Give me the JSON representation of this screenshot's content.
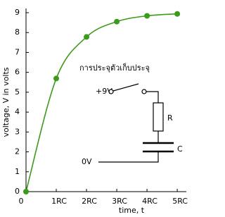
{
  "chart_data": {
    "type": "line",
    "x_label": "time, t",
    "y_label": "voltage, V in volts",
    "x": [
      0,
      1,
      2,
      3,
      4,
      5
    ],
    "series": [
      {
        "color": "#3c9a1c",
        "values": [
          0,
          5.69,
          7.78,
          8.55,
          8.84,
          8.94
        ]
      }
    ],
    "xlim": [
      0,
      5.3
    ],
    "ylim": [
      0,
      9
    ],
    "xticks": [
      0,
      {
        "value": 1,
        "label": "1RC"
      },
      {
        "value": 2,
        "label": "2RC"
      },
      {
        "value": 3,
        "label": "3RC"
      },
      {
        "value": 4,
        "label": "4RC"
      },
      {
        "value": 5,
        "label": "5RC"
      }
    ],
    "yticks": [
      0,
      1,
      2,
      3,
      4,
      5,
      6,
      7,
      8,
      9
    ],
    "annotations": {
      "diagram_title": "การประจุตัวเก็บประจุ",
      "supply": "+9V",
      "resistor": "R",
      "capacitor": "C",
      "ground": "0V"
    }
  }
}
